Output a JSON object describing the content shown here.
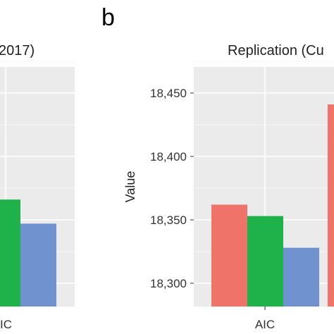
{
  "chart_data": [
    {
      "type": "bar",
      "title": "2017)",
      "panel_letter": "",
      "categories": [
        "AIC"
      ],
      "category_label_visible": "IC",
      "ylabel": "",
      "ylim": [
        18290,
        18480
      ],
      "yticks": [],
      "grid": true,
      "series": [
        {
          "color": "#1fb14a",
          "values": [
            18366
          ]
        },
        {
          "color": "#7093cf",
          "values": [
            18347
          ]
        }
      ]
    },
    {
      "type": "bar",
      "title": "Replication (Cu",
      "panel_letter": "b",
      "categories": [
        "AIC"
      ],
      "ylabel": "Value",
      "ylim": [
        18290,
        18480
      ],
      "yticks": [
        "18,300",
        "18,350",
        "18,400",
        "18,450"
      ],
      "ytick_values": [
        18300,
        18350,
        18400,
        18450
      ],
      "grid": true,
      "series": [
        {
          "color": "#f07369",
          "values": [
            18362
          ]
        },
        {
          "color": "#1fb14a",
          "values": [
            18353
          ]
        },
        {
          "color": "#7093cf",
          "values": [
            18328
          ]
        },
        {
          "color": "#f07369",
          "values": [
            18441
          ]
        }
      ]
    }
  ]
}
